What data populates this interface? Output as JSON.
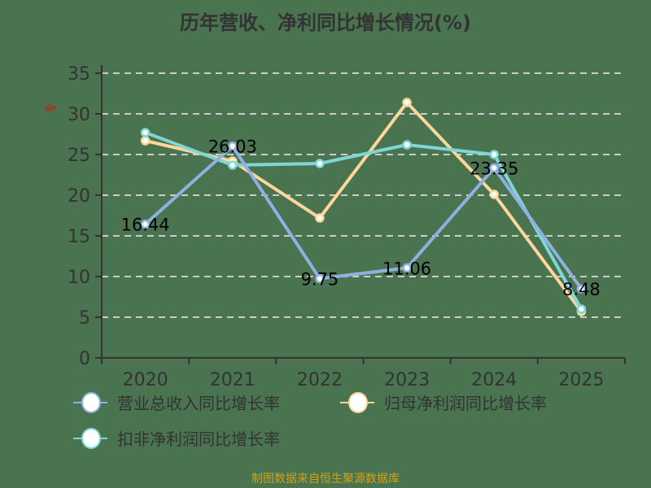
{
  "chart_data": {
    "type": "line",
    "title": "历年营收、净利同比增长情况(%)",
    "xlabel": "",
    "ylabel": "%",
    "categories": [
      "2020",
      "2021",
      "2022",
      "2023",
      "2024",
      "2025"
    ],
    "ylim": [
      0,
      35
    ],
    "yticks": [
      0,
      5,
      10,
      15,
      20,
      25,
      30,
      35
    ],
    "grid": true,
    "legend_position": "bottom",
    "series": [
      {
        "name": "营业总收入同比增长率",
        "color": "#8fb0e0",
        "values": [
          16.44,
          26.03,
          9.75,
          11.06,
          23.35,
          8.48
        ],
        "labels": [
          "16.44",
          "26.03",
          "9.75",
          "11.06",
          "23.35",
          "8.48"
        ]
      },
      {
        "name": "归母净利润同比增长率",
        "color": "#fcd79c",
        "values": [
          26.7,
          24.2,
          17.2,
          31.4,
          20.1,
          5.7
        ]
      },
      {
        "name": "扣非净利润同比增长率",
        "color": "#7fd6d6",
        "values": [
          27.7,
          23.7,
          23.9,
          26.2,
          25.0,
          6.0
        ]
      }
    ],
    "source": "制图数据来自恒生聚源数据库"
  }
}
